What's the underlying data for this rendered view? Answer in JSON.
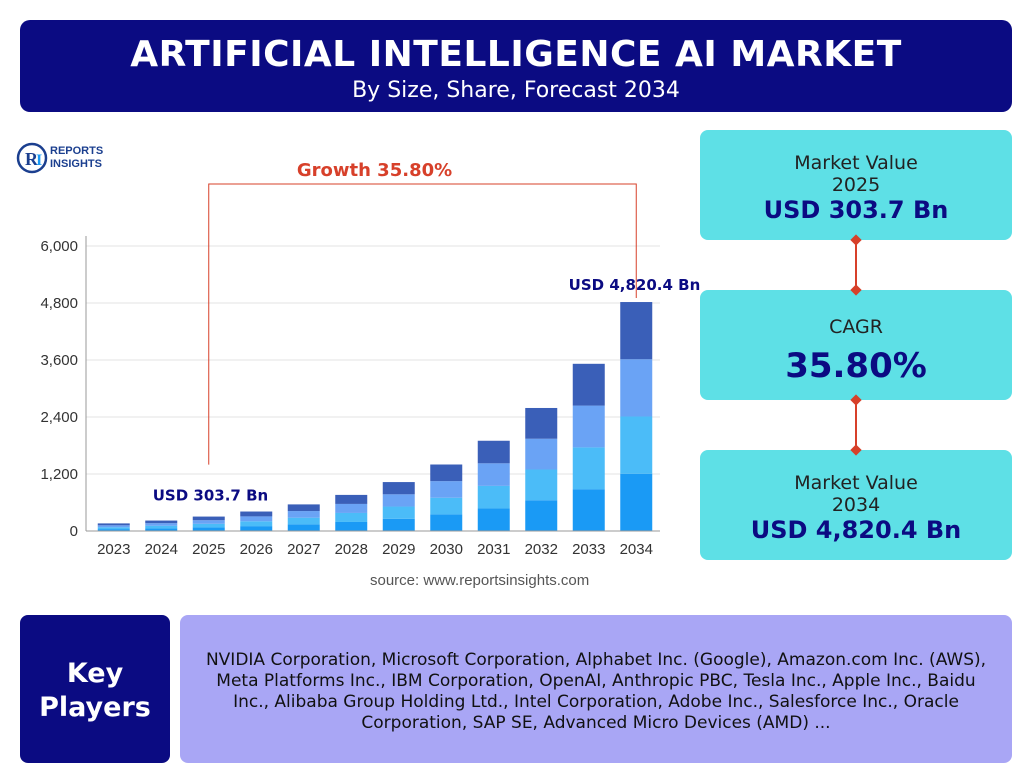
{
  "header": {
    "title": "ARTIFICIAL INTELLIGENCE AI MARKET",
    "subtitle": "By Size, Share, Forecast 2034"
  },
  "logo": {
    "line1": "REPORTS",
    "line2": "INSIGHTS",
    "mark": "RI"
  },
  "chart_data": {
    "type": "bar",
    "stacked": true,
    "categories": [
      "2023",
      "2024",
      "2025",
      "2026",
      "2027",
      "2028",
      "2029",
      "2030",
      "2031",
      "2032",
      "2033",
      "2034"
    ],
    "totals": [
      160,
      220,
      303.7,
      410,
      560,
      760,
      1030,
      1400,
      1900,
      2590,
      3520,
      4820.4
    ],
    "segment_colors": [
      "#1a9af5",
      "#4bbcf8",
      "#6aa3f5",
      "#3a5fb8"
    ],
    "yticks": [
      "0",
      "1,200",
      "2,400",
      "3,600",
      "4,800",
      "6,000"
    ],
    "ylim": [
      0,
      6000
    ],
    "grid": true,
    "annotations": {
      "growth": "Growth 35.80%",
      "start_label": "USD 303.7 Bn",
      "end_label": "USD 4,820.4 Bn"
    },
    "annotation_color": "#d7402a"
  },
  "source": "source: www.reportsinsights.com",
  "kpis": {
    "value_2025": {
      "label": "Market Value",
      "year": "2025",
      "value": "USD 303.7 Bn"
    },
    "cagr": {
      "label": "CAGR",
      "value": "35.80%"
    },
    "value_2034": {
      "label": "Market Value",
      "year": "2034",
      "value": "USD 4,820.4 Bn"
    }
  },
  "key_players": {
    "label_line1": "Key",
    "label_line2": "Players",
    "text": "NVIDIA Corporation, Microsoft Corporation, Alphabet Inc. (Google), Amazon.com Inc. (AWS), Meta Platforms Inc., IBM Corporation, OpenAI, Anthropic PBC, Tesla Inc., Apple Inc., Baidu Inc., Alibaba Group Holding Ltd., Intel Corporation, Adobe Inc., Salesforce Inc., Oracle Corporation, SAP SE, Advanced Micro Devices (AMD) ..."
  },
  "colors": {
    "navy": "#0b0b82",
    "cyan": "#5ee0e6",
    "lavender": "#a9a6f5",
    "accent": "#d7402a"
  }
}
